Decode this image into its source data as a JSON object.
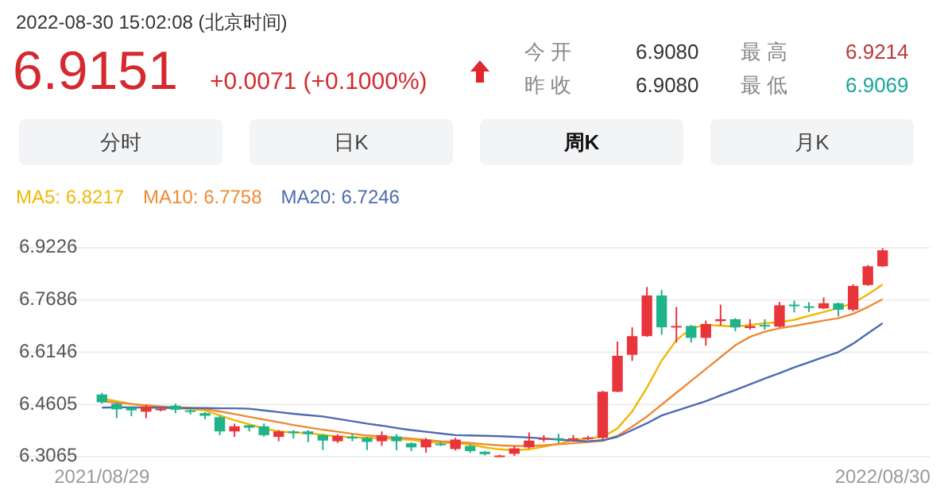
{
  "chart_data": [
    {
      "type": "other",
      "title": "2022-08-30 15:02:08  (北京时间)",
      "annotations": [
        "6.9151",
        "+0.0071 (+0.1000%)",
        "今 开",
        "6.9080",
        "昨 收",
        "6.9080",
        "最 高",
        "6.9214",
        "最 低",
        "6.9069",
        "分时",
        "日K",
        "周K",
        "月K"
      ]
    },
    {
      "type": "candlestick",
      "categories": [
        "2021/08/29",
        null,
        null,
        null,
        null,
        null,
        null,
        null,
        null,
        null,
        null,
        null,
        null,
        null,
        null,
        null,
        null,
        null,
        null,
        null,
        null,
        null,
        null,
        null,
        null,
        null,
        null,
        null,
        null,
        null,
        null,
        null,
        null,
        null,
        null,
        null,
        null,
        null,
        null,
        null,
        null,
        null,
        null,
        null,
        null,
        null,
        null,
        null,
        null,
        null,
        null,
        null,
        null,
        "2022/08/30"
      ],
      "ohlc": [
        [
          6.49,
          6.495,
          6.463,
          6.467
        ],
        [
          6.463,
          6.466,
          6.42,
          6.446
        ],
        [
          6.451,
          6.455,
          6.426,
          6.443
        ],
        [
          6.439,
          6.459,
          6.42,
          6.454
        ],
        [
          6.447,
          6.452,
          6.44,
          6.448
        ],
        [
          6.457,
          6.463,
          6.435,
          6.445
        ],
        [
          6.443,
          6.445,
          6.431,
          6.439
        ],
        [
          6.435,
          6.438,
          6.417,
          6.427
        ],
        [
          6.423,
          6.427,
          6.37,
          6.381
        ],
        [
          6.381,
          6.404,
          6.365,
          6.396
        ],
        [
          6.399,
          6.4,
          6.381,
          6.392
        ],
        [
          6.396,
          6.404,
          6.365,
          6.37
        ],
        [
          6.365,
          6.385,
          6.352,
          6.381
        ],
        [
          6.381,
          6.385,
          6.36,
          6.376
        ],
        [
          6.381,
          6.385,
          6.349,
          6.373
        ],
        [
          6.37,
          6.373,
          6.326,
          6.354
        ],
        [
          6.352,
          6.373,
          6.347,
          6.368
        ],
        [
          6.365,
          6.374,
          6.352,
          6.363
        ],
        [
          6.362,
          6.365,
          6.326,
          6.35
        ],
        [
          6.352,
          6.381,
          6.338,
          6.37
        ],
        [
          6.366,
          6.373,
          6.326,
          6.352
        ],
        [
          6.346,
          6.349,
          6.323,
          6.334
        ],
        [
          6.334,
          6.362,
          6.318,
          6.357
        ],
        [
          6.345,
          6.35,
          6.338,
          6.343
        ],
        [
          6.329,
          6.362,
          6.325,
          6.357
        ],
        [
          6.338,
          6.342,
          6.318,
          6.323
        ],
        [
          6.321,
          6.323,
          6.31,
          6.314
        ],
        [
          6.308,
          6.312,
          6.307,
          6.31
        ],
        [
          6.315,
          6.338,
          6.309,
          6.331
        ],
        [
          6.334,
          6.378,
          6.33,
          6.354
        ],
        [
          6.358,
          6.37,
          6.35,
          6.361
        ],
        [
          6.361,
          6.374,
          6.346,
          6.358
        ],
        [
          6.358,
          6.37,
          6.35,
          6.361
        ],
        [
          6.359,
          6.368,
          6.356,
          6.363
        ],
        [
          6.362,
          6.501,
          6.357,
          6.498
        ],
        [
          6.498,
          6.646,
          6.497,
          6.604
        ],
        [
          6.607,
          6.688,
          6.589,
          6.662
        ],
        [
          6.662,
          6.807,
          6.66,
          6.782
        ],
        [
          6.782,
          6.798,
          6.666,
          6.688
        ],
        [
          6.69,
          6.748,
          6.643,
          6.692
        ],
        [
          6.692,
          6.695,
          6.643,
          6.657
        ],
        [
          6.657,
          6.708,
          6.634,
          6.698
        ],
        [
          6.706,
          6.755,
          6.693,
          6.712
        ],
        [
          6.712,
          6.715,
          6.676,
          6.688
        ],
        [
          6.686,
          6.712,
          6.681,
          6.692
        ],
        [
          6.695,
          6.712,
          6.681,
          6.692
        ],
        [
          6.69,
          6.763,
          6.688,
          6.753
        ],
        [
          6.755,
          6.767,
          6.732,
          6.752
        ],
        [
          6.75,
          6.762,
          6.733,
          6.747
        ],
        [
          6.744,
          6.776,
          6.742,
          6.759
        ],
        [
          6.759,
          6.761,
          6.72,
          6.74
        ],
        [
          6.74,
          6.815,
          6.735,
          6.81
        ],
        [
          6.813,
          6.872,
          6.81,
          6.868
        ],
        [
          6.868,
          6.9214,
          6.866,
          6.9151
        ]
      ],
      "series": [
        {
          "name": "MA5: 6.8217",
          "type": "line",
          "color": "#f2b705",
          "values": [
            6.478,
            6.47,
            6.462,
            6.455,
            6.451,
            6.45,
            6.447,
            6.443,
            6.428,
            6.414,
            6.402,
            6.39,
            6.381,
            6.378,
            6.376,
            6.371,
            6.366,
            6.364,
            6.362,
            6.36,
            6.359,
            6.356,
            6.35,
            6.348,
            6.346,
            6.342,
            6.334,
            6.328,
            6.326,
            6.328,
            6.336,
            6.345,
            6.355,
            6.36,
            6.365,
            6.39,
            6.44,
            6.51,
            6.59,
            6.65,
            6.685,
            6.695,
            6.693,
            6.69,
            6.695,
            6.7,
            6.703,
            6.71,
            6.722,
            6.733,
            6.745,
            6.76,
            6.785,
            6.814
          ]
        },
        {
          "name": "MA10: 6.7758",
          "type": "line",
          "color": "#ee8a35",
          "values": [
            6.47,
            6.466,
            6.462,
            6.458,
            6.455,
            6.452,
            6.45,
            6.447,
            6.44,
            6.432,
            6.424,
            6.416,
            6.408,
            6.4,
            6.393,
            6.386,
            6.38,
            6.374,
            6.369,
            6.366,
            6.363,
            6.36,
            6.356,
            6.352,
            6.35,
            6.347,
            6.343,
            6.34,
            6.338,
            6.338,
            6.34,
            6.343,
            6.346,
            6.35,
            6.353,
            6.368,
            6.395,
            6.425,
            6.46,
            6.495,
            6.53,
            6.565,
            6.6,
            6.635,
            6.66,
            6.675,
            6.685,
            6.692,
            6.7,
            6.708,
            6.715,
            6.728,
            6.748,
            6.771
          ]
        },
        {
          "name": "MA20: 6.7246",
          "type": "line",
          "color": "#4c6bb0",
          "values": [
            6.451,
            6.452,
            6.452,
            6.451,
            6.451,
            6.45,
            6.45,
            6.45,
            6.449,
            6.449,
            6.448,
            6.443,
            6.438,
            6.433,
            6.429,
            6.425,
            6.418,
            6.411,
            6.404,
            6.398,
            6.391,
            6.385,
            6.38,
            6.375,
            6.37,
            6.369,
            6.368,
            6.367,
            6.365,
            6.363,
            6.36,
            6.357,
            6.354,
            6.352,
            6.355,
            6.365,
            6.385,
            6.405,
            6.428,
            6.442,
            6.456,
            6.47,
            6.487,
            6.503,
            6.52,
            6.537,
            6.553,
            6.57,
            6.585,
            6.6,
            6.615,
            6.64,
            6.67,
            6.7
          ]
        }
      ],
      "ylim": [
        6.3065,
        6.9226
      ],
      "yticks": [
        6.3065,
        6.4605,
        6.6146,
        6.7686,
        6.9226
      ],
      "grid": "y",
      "legend": "top left"
    }
  ]
}
